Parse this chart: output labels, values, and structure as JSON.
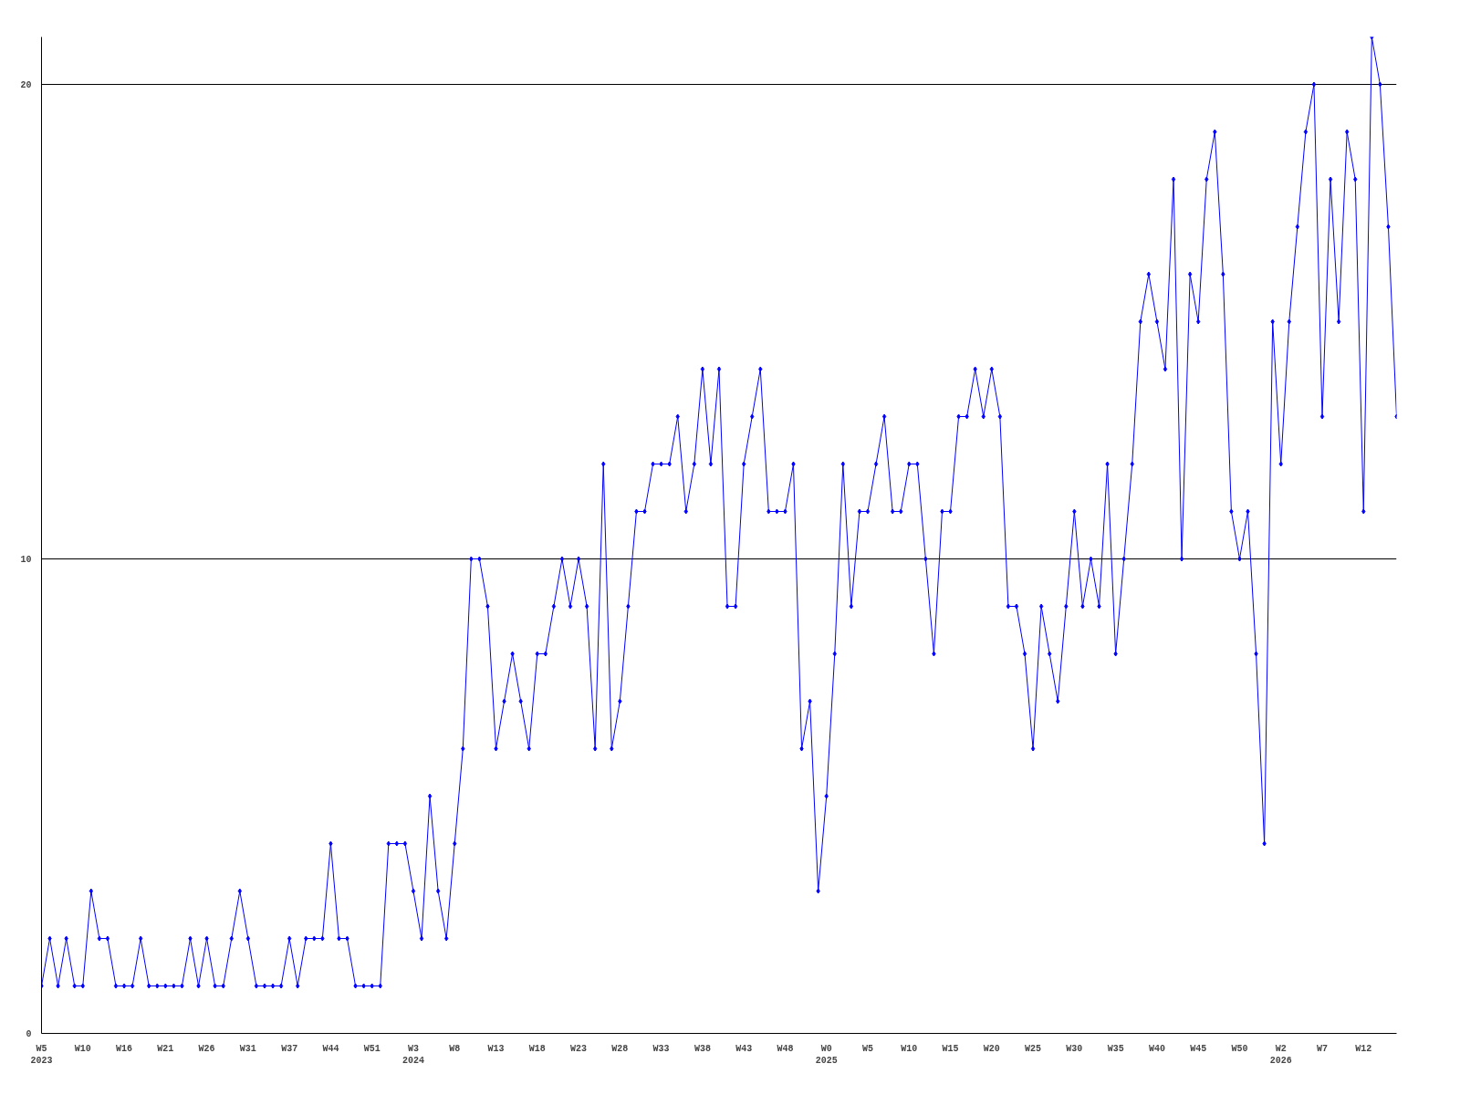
{
  "chart_data": {
    "type": "line",
    "categories": [
      "W5\n2023",
      null,
      null,
      null,
      null,
      "W10",
      null,
      null,
      null,
      null,
      "W16",
      null,
      null,
      null,
      null,
      "W21",
      null,
      null,
      null,
      null,
      "W26",
      null,
      null,
      null,
      null,
      "W31",
      null,
      null,
      null,
      null,
      "W37",
      null,
      null,
      null,
      null,
      "W44",
      null,
      null,
      null,
      null,
      "W51",
      null,
      null,
      null,
      null,
      "W3\n2024",
      null,
      null,
      null,
      null,
      "W8",
      null,
      null,
      null,
      null,
      "W13",
      null,
      null,
      null,
      null,
      "W18",
      null,
      null,
      null,
      null,
      "W23",
      null,
      null,
      null,
      null,
      "W28",
      null,
      null,
      null,
      null,
      "W33",
      null,
      null,
      null,
      null,
      "W38",
      null,
      null,
      null,
      null,
      "W43",
      null,
      null,
      null,
      null,
      "W48",
      null,
      null,
      null,
      null,
      "W0\n2025",
      null,
      null,
      null,
      null,
      "W5",
      null,
      null,
      null,
      null,
      "W10",
      null,
      null,
      null,
      null,
      "W15",
      null,
      null,
      null,
      null,
      "W20",
      null,
      null,
      null,
      null,
      "W25",
      null,
      null,
      null,
      null,
      "W30",
      null,
      null,
      null,
      null,
      "W35",
      null,
      null,
      null,
      null,
      "W40",
      null,
      null,
      null,
      null,
      "W45",
      null,
      null,
      null,
      null,
      "W50",
      null,
      null,
      null,
      null,
      "W2\n2026",
      null,
      null,
      null,
      null,
      "W7",
      null,
      null,
      null,
      null,
      "W12",
      null,
      null,
      null,
      null
    ],
    "series": [
      {
        "color": "#0000ff",
        "values": [
          1,
          2,
          1,
          2,
          1,
          1,
          3,
          2,
          2,
          1,
          1,
          1,
          2,
          1,
          1,
          1,
          1,
          1,
          2,
          1,
          2,
          1,
          1,
          2,
          3,
          2,
          1,
          1,
          1,
          1,
          2,
          1,
          2,
          2,
          2,
          4,
          2,
          2,
          1,
          1,
          1,
          1,
          4,
          4,
          4,
          3,
          2,
          5,
          3,
          2,
          4,
          6,
          10,
          10,
          9,
          6,
          7,
          8,
          7,
          6,
          8,
          8,
          9,
          10,
          9,
          10,
          9,
          6,
          12,
          6,
          7,
          9,
          11,
          11,
          12,
          12,
          12,
          13,
          11,
          12,
          14,
          12,
          14,
          9,
          9,
          12,
          13,
          14,
          11,
          11,
          11,
          12,
          6,
          7,
          3,
          5,
          8,
          12,
          9,
          11,
          11,
          12,
          13,
          11,
          11,
          12,
          12,
          10,
          8,
          11,
          11,
          13,
          13,
          14,
          13,
          14,
          13,
          9,
          9,
          8,
          6,
          9,
          8,
          7,
          9,
          11,
          9,
          10,
          9,
          12,
          8,
          10,
          12,
          15,
          16,
          15,
          14,
          18,
          10,
          16,
          15,
          18,
          19,
          16,
          11,
          10,
          11,
          8,
          4,
          15,
          12,
          15,
          17,
          19,
          20,
          13,
          18,
          15,
          19,
          18,
          11,
          21,
          20,
          17,
          13
        ]
      }
    ],
    "ylim": [
      0,
      21
    ],
    "yticks": [
      0,
      10,
      20
    ],
    "grid": "y",
    "marker": "diamond",
    "line_style": "solid"
  }
}
